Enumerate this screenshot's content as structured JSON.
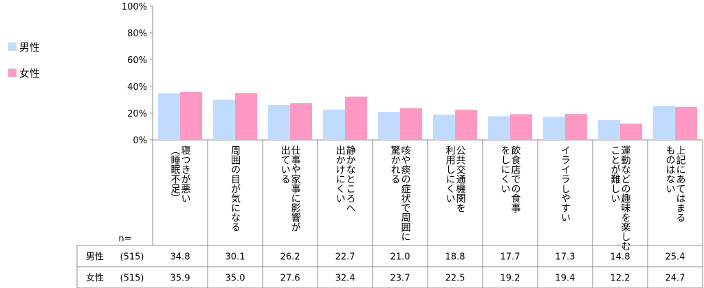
{
  "chart_data": {
    "type": "bar",
    "categories": [
      [
        "寝つきが悪い",
        "（睡眠不足）"
      ],
      [
        "周囲の目が気になる"
      ],
      [
        "仕事や家事に影響が",
        "出ている"
      ],
      [
        "静かなところへ",
        "出かけにくい"
      ],
      [
        "咳や痰の症状で周囲に",
        "驚かれる"
      ],
      [
        "公共交通機関を",
        "利用しにくい"
      ],
      [
        "飲食店での食事",
        "をしにくい"
      ],
      [
        "イライラしやすい"
      ],
      [
        "運動などの趣味を楽しむ",
        "ことが難しい"
      ],
      [
        "上記にあてはまる",
        "ものはない"
      ]
    ],
    "series": [
      {
        "name": "男性",
        "n": "(515)",
        "color": "#bfdcff",
        "values": [
          34.8,
          30.1,
          26.2,
          22.7,
          21.0,
          18.8,
          17.7,
          17.3,
          14.8,
          25.4
        ],
        "labels": [
          "34.8",
          "30.1",
          "26.2",
          "22.7",
          "21.0",
          "18.8",
          "17.7",
          "17.3",
          "14.8",
          "25.4"
        ]
      },
      {
        "name": "女性",
        "n": "(515)",
        "color": "#ff99c4",
        "values": [
          35.9,
          35.0,
          27.6,
          32.4,
          23.7,
          22.5,
          19.2,
          19.4,
          12.2,
          24.7
        ],
        "labels": [
          "35.9",
          "35.0",
          "27.6",
          "32.4",
          "23.7",
          "22.5",
          "19.2",
          "19.4",
          "12.2",
          "24.7"
        ]
      }
    ],
    "ylim": [
      0,
      100
    ],
    "yticks": [
      "0%",
      "20%",
      "40%",
      "60%",
      "80%",
      "100%"
    ],
    "n_label": "n=",
    "legend_position": "left",
    "grid": false
  }
}
